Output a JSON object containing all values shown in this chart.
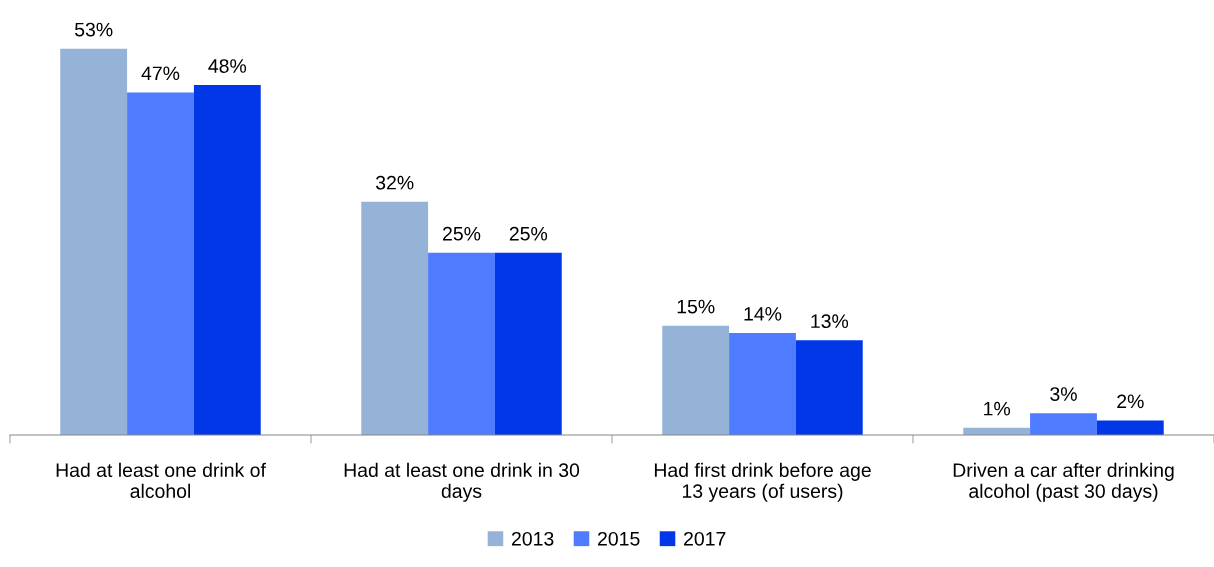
{
  "chart_data": {
    "type": "bar",
    "categories": [
      "Had at least one drink of\nalcohol",
      "Had at least one drink in 30\ndays",
      "Had first drink before age\n13 years (of users)",
      "Driven a car after drinking\nalcohol (past 30 days)"
    ],
    "series": [
      {
        "name": "2013",
        "color": "#95b3d7",
        "values": [
          53,
          32,
          15,
          1
        ],
        "value_labels": [
          "53%",
          "32%",
          "15%",
          "1%"
        ]
      },
      {
        "name": "2015",
        "color": "#4f7bff",
        "values": [
          47,
          25,
          14,
          3
        ],
        "value_labels": [
          "47%",
          "25%",
          "14%",
          "3%"
        ]
      },
      {
        "name": "2017",
        "color": "#0237e8",
        "values": [
          48,
          25,
          13,
          2
        ],
        "value_labels": [
          "48%",
          "25%",
          "13%",
          "2%"
        ]
      }
    ],
    "legend": "bottom"
  }
}
